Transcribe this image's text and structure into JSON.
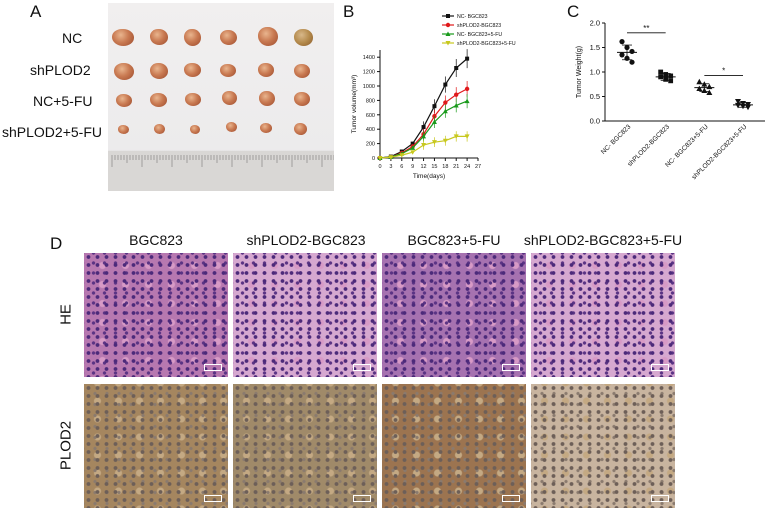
{
  "panel_a": {
    "letter": "A",
    "row_labels": [
      "NC",
      "shPLOD2",
      "NC+5-FU",
      "shPLOD2+5-FU"
    ]
  },
  "panel_b": {
    "letter": "B"
  },
  "panel_c": {
    "letter": "C"
  },
  "panel_d": {
    "letter": "D",
    "column_titles": [
      "BGC823",
      "shPLOD2-BGC823",
      "BGC823+5-FU",
      "shPLOD2-BGC823+5-FU"
    ],
    "row_titles": [
      "HE",
      "PLOD2"
    ]
  },
  "chart_data": [
    {
      "type": "line",
      "panel": "B",
      "ylabel": "Tumor volume(mm³)",
      "xlabel": "Time(days)",
      "x": [
        0,
        3,
        6,
        9,
        12,
        15,
        18,
        21,
        24
      ],
      "x_ticks": [
        0,
        3,
        6,
        9,
        12,
        15,
        18,
        21,
        24,
        27
      ],
      "y_ticks": [
        0,
        200,
        400,
        600,
        800,
        1000,
        1200,
        1400
      ],
      "xlim": [
        0,
        27
      ],
      "ylim": [
        0,
        1500
      ],
      "legend_position": "top-right",
      "series": [
        {
          "name": "NC- BGC823",
          "color": "#111111",
          "marker": "square",
          "values": [
            0,
            20,
            90,
            200,
            430,
            720,
            1020,
            1250,
            1380
          ]
        },
        {
          "name": "shPLOD2-BGC823",
          "color": "#e0191b",
          "marker": "circle",
          "values": [
            0,
            15,
            70,
            160,
            330,
            580,
            770,
            880,
            960
          ]
        },
        {
          "name": "NC- BGC823+5-FU",
          "color": "#199a1b",
          "marker": "triangle",
          "values": [
            0,
            15,
            60,
            140,
            300,
            500,
            650,
            730,
            790
          ]
        },
        {
          "name": "shPLOD2-BGC823+5-FU",
          "color": "#c8c81e",
          "marker": "triangle-down",
          "values": [
            0,
            10,
            40,
            80,
            180,
            220,
            240,
            300,
            300
          ]
        }
      ]
    },
    {
      "type": "scatter",
      "panel": "C",
      "ylabel": "Tumor Weight(g)",
      "categories": [
        "NC- BGC823",
        "shPLOD2-BGC823",
        "NC- BGC823+5-FU",
        "shPLOD2-BGC823+5-FU"
      ],
      "y_ticks": [
        "0.0",
        "0.5",
        "1.0",
        "1.5",
        "2.0"
      ],
      "ylim": [
        0,
        2.0
      ],
      "groups": [
        {
          "category": "NC- BGC823",
          "mean": 1.4,
          "sd": 0.15,
          "points": [
            1.62,
            1.5,
            1.42,
            1.35,
            1.28,
            1.2
          ]
        },
        {
          "category": "shPLOD2-BGC823",
          "mean": 0.9,
          "sd": 0.07,
          "points": [
            1.0,
            0.95,
            0.92,
            0.9,
            0.85,
            0.82
          ]
        },
        {
          "category": "NC- BGC823+5-FU",
          "mean": 0.68,
          "sd": 0.08,
          "points": [
            0.8,
            0.75,
            0.7,
            0.66,
            0.62,
            0.58
          ]
        },
        {
          "category": "shPLOD2-BGC823+5-FU",
          "mean": 0.33,
          "sd": 0.05,
          "points": [
            0.4,
            0.36,
            0.34,
            0.32,
            0.3,
            0.28
          ]
        }
      ],
      "annotations": [
        {
          "text": "**",
          "between": [
            "NC- BGC823",
            "shPLOD2-BGC823"
          ],
          "y": 1.8
        },
        {
          "text": "*",
          "between": [
            "NC- BGC823+5-FU",
            "shPLOD2-BGC823+5-FU"
          ],
          "y": 0.93
        }
      ]
    }
  ]
}
